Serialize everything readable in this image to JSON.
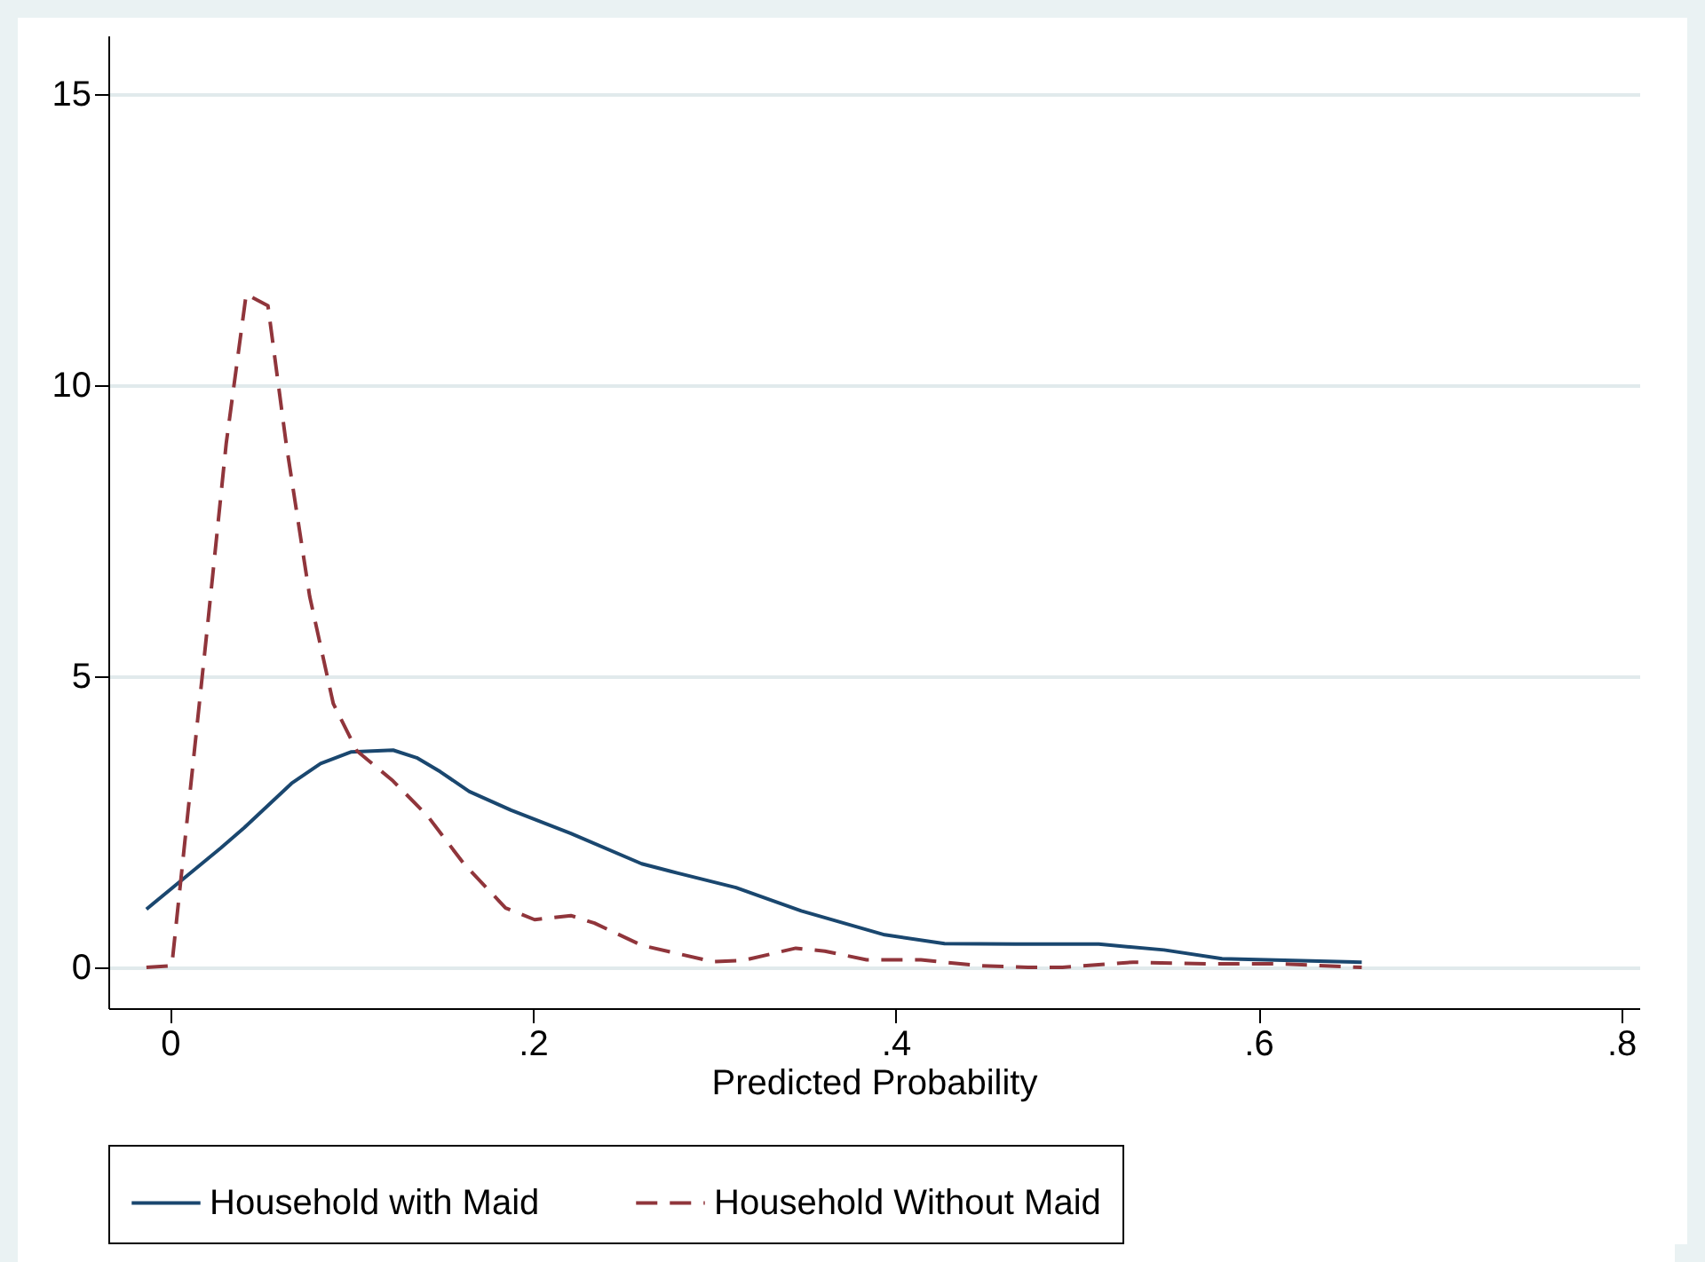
{
  "chart_data": {
    "type": "line",
    "xlabel": "Predicted Probability",
    "xlim": [
      -0.034,
      0.81
    ],
    "ylim": [
      -0.7,
      16
    ],
    "xticks": [
      0,
      {
        "value": 0.2,
        "label": ".2"
      },
      {
        "value": 0.4,
        "label": ".4"
      },
      {
        "value": 0.6,
        "label": ".6"
      },
      {
        "value": 0.8,
        "label": ".8"
      }
    ],
    "yticks": [
      0,
      5,
      10,
      15
    ],
    "grid": "y",
    "legend": "bottom",
    "series": [
      {
        "name": "Household with Maid",
        "color": "#1a476f",
        "line_style": "solid",
        "x": [
          -0.013,
          0.028,
          0.041,
          0.067,
          0.083,
          0.1,
          0.123,
          0.136,
          0.149,
          0.165,
          0.188,
          0.221,
          0.26,
          0.276,
          0.312,
          0.348,
          0.394,
          0.427,
          0.466,
          0.512,
          0.548,
          0.58,
          0.657
        ],
        "values": [
          1.0,
          2.05,
          2.4,
          3.16,
          3.5,
          3.7,
          3.73,
          3.6,
          3.36,
          3.02,
          2.7,
          2.3,
          1.78,
          1.65,
          1.37,
          0.97,
          0.56,
          0.41,
          0.4,
          0.4,
          0.3,
          0.15,
          0.09
        ]
      },
      {
        "name": "Household Without Maid",
        "color": "#90353b",
        "line_style": "dashed",
        "x": [
          -0.013,
          0.001,
          0.021,
          0.031,
          0.042,
          0.054,
          0.064,
          0.077,
          0.09,
          0.103,
          0.123,
          0.142,
          0.162,
          0.185,
          0.201,
          0.221,
          0.234,
          0.26,
          0.299,
          0.316,
          0.345,
          0.361,
          0.384,
          0.414,
          0.446,
          0.473,
          0.492,
          0.531,
          0.571,
          0.613,
          0.657
        ],
        "values": [
          0,
          0.03,
          5.96,
          9.0,
          11.56,
          11.36,
          9.0,
          6.37,
          4.53,
          3.72,
          3.2,
          2.6,
          1.78,
          1.02,
          0.82,
          0.89,
          0.76,
          0.38,
          0.1,
          0.12,
          0.33,
          0.28,
          0.13,
          0.13,
          0.03,
          0,
          0,
          0.09,
          0.06,
          0.06,
          0
        ]
      }
    ]
  }
}
